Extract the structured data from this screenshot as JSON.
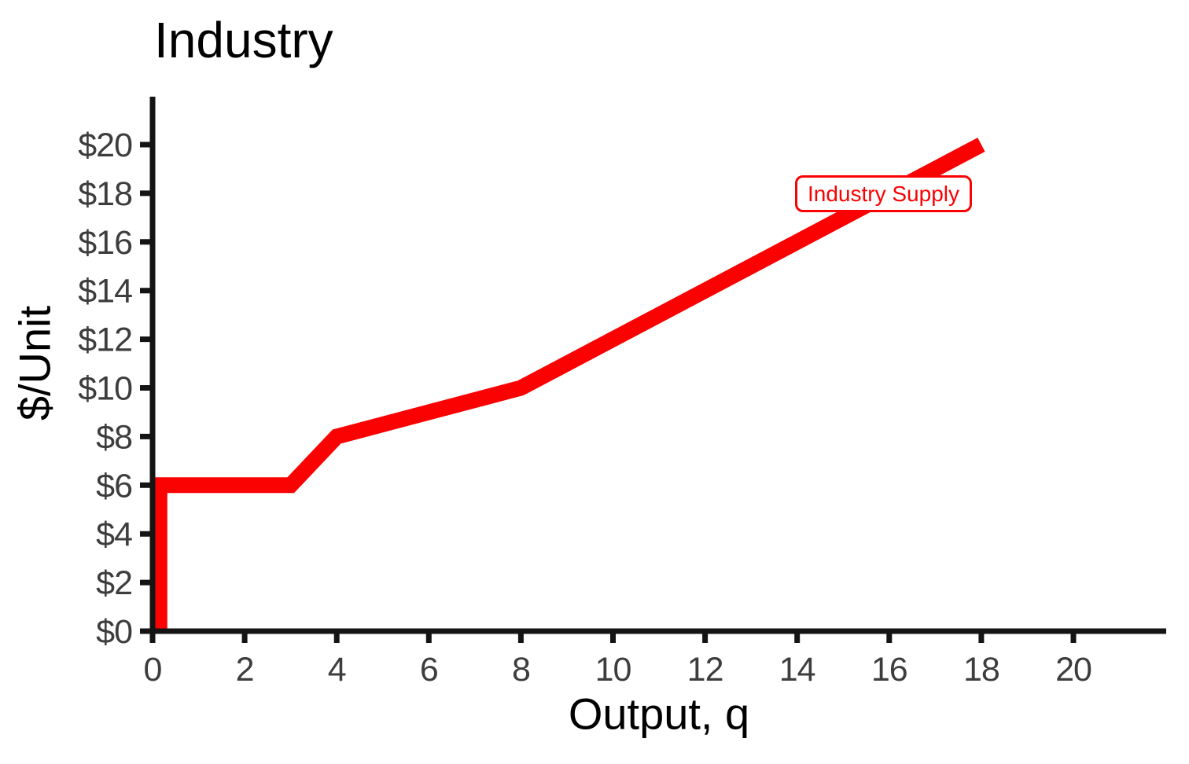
{
  "chart_data": {
    "type": "line",
    "title": "Industry",
    "xlabel": "Output, q",
    "ylabel": "$/Unit",
    "xlim": [
      0,
      22
    ],
    "ylim": [
      0,
      22
    ],
    "grid": false,
    "x_ticks": [
      0,
      2,
      4,
      6,
      8,
      10,
      12,
      14,
      16,
      18,
      20
    ],
    "x_tick_labels": [
      "0",
      "2",
      "4",
      "6",
      "8",
      "10",
      "12",
      "14",
      "16",
      "18",
      "20"
    ],
    "y_ticks": [
      0,
      2,
      4,
      6,
      8,
      10,
      12,
      14,
      16,
      18,
      20
    ],
    "y_tick_labels": [
      "$0",
      "$2",
      "$4",
      "$6",
      "$8",
      "$10",
      "$12",
      "$14",
      "$16",
      "$18",
      "$20"
    ],
    "series": [
      {
        "name": "Industry Supply",
        "color": "#fa0202",
        "points": [
          [
            0,
            0
          ],
          [
            0,
            6
          ],
          [
            3,
            6
          ],
          [
            4,
            8
          ],
          [
            8,
            10
          ],
          [
            18,
            20
          ]
        ]
      }
    ],
    "annotations": [
      {
        "label": "Industry Supply",
        "style": "boxed",
        "color": "#fa0202"
      }
    ],
    "legend_position": "inline-boxed-label",
    "colors": {
      "axis": "#141414",
      "tick_label": "#3d3d3d",
      "text": "#000000",
      "accent_red": "#fa0202",
      "background": "#ffffff"
    }
  }
}
